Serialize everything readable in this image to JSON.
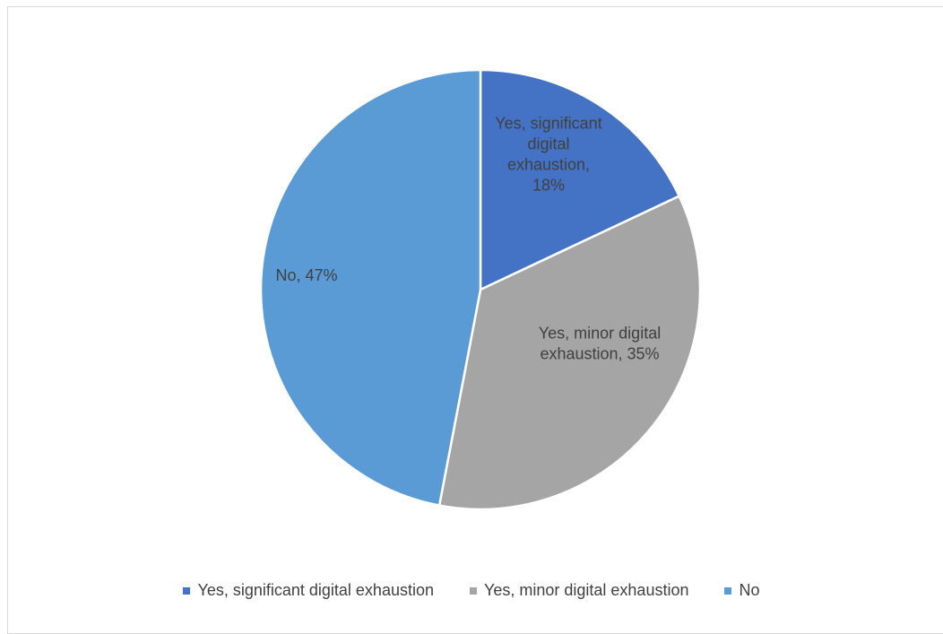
{
  "chart_data": {
    "type": "pie",
    "title": "",
    "categories": [
      "Yes, significant digital exhaustion",
      "Yes, minor digital exhaustion",
      "No"
    ],
    "values": [
      18,
      35,
      47
    ],
    "unit": "%",
    "colors": [
      "#4472c4",
      "#a5a5a5",
      "#5b9bd5"
    ],
    "data_labels": [
      [
        "Yes, significant",
        "digital",
        "exhaustion,",
        "18%"
      ],
      [
        "Yes, minor digital",
        "exhaustion, 35%"
      ],
      [
        "No, 47%"
      ]
    ],
    "legend": {
      "position": "bottom",
      "entries": [
        "Yes, significant digital exhaustion",
        "Yes, minor digital exhaustion",
        "No"
      ]
    }
  }
}
